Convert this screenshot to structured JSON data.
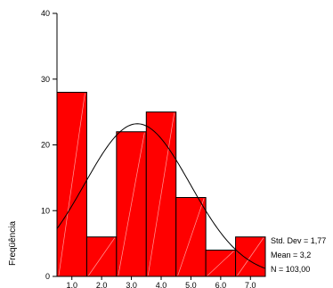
{
  "chart_data": {
    "type": "bar",
    "subtype": "histogram",
    "categories": [
      "1,0",
      "2,0",
      "3,0",
      "4,0",
      "5,0",
      "6,0",
      "7,0"
    ],
    "values": [
      28,
      6,
      22,
      25,
      12,
      4,
      6
    ],
    "ylabel": "Freqüência",
    "ylim": [
      0,
      40
    ],
    "yticks": [
      "0",
      "10",
      "20",
      "30",
      "40"
    ],
    "xlim": [
      0.5,
      7.5
    ],
    "grid": false,
    "bar_color": "#ff0000",
    "normal_curve": {
      "mean": 3.2,
      "std": 1.77,
      "n": 103
    },
    "stats": [
      "Std. Dev = 1,77",
      "Mean = 3,2",
      "N = 103,00"
    ]
  }
}
